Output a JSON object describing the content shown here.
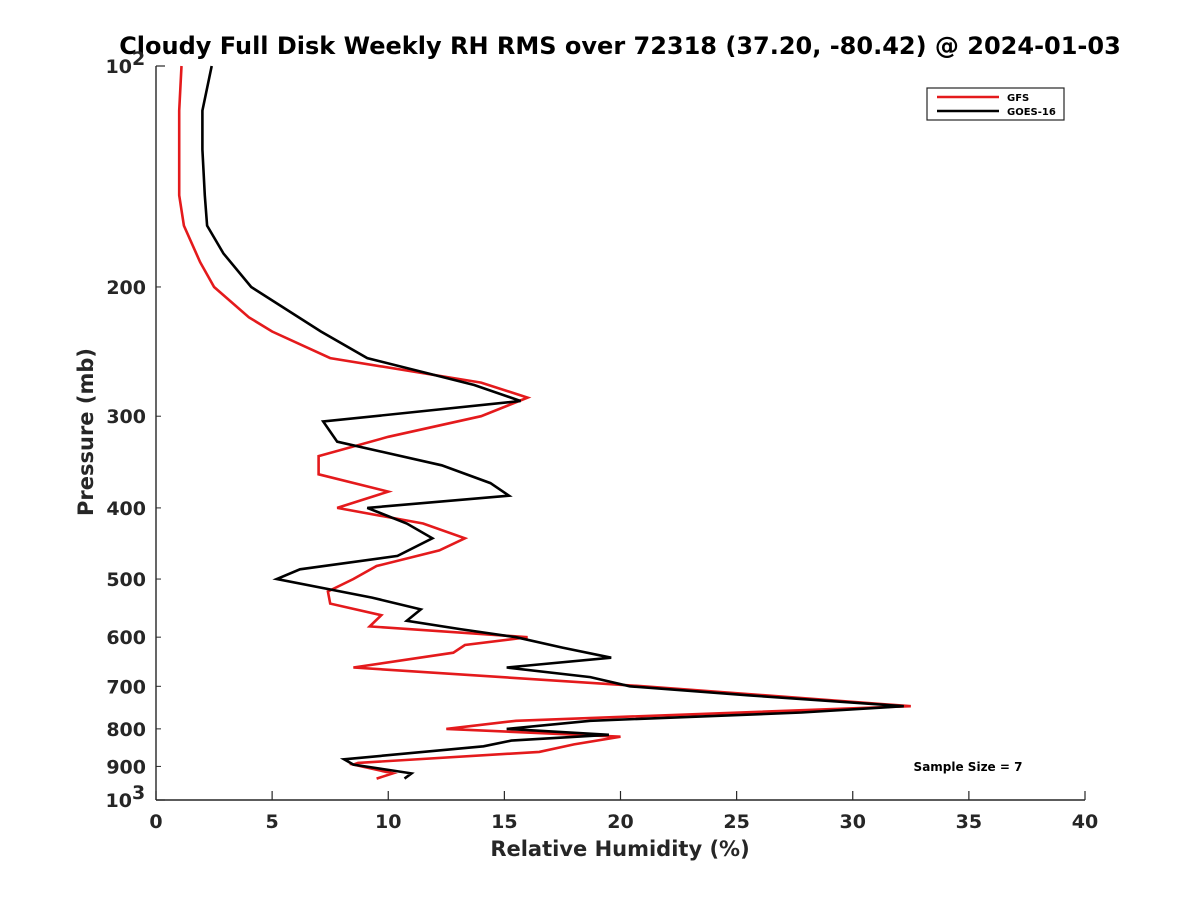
{
  "chart_data": {
    "type": "line",
    "title": "Cloudy Full Disk Weekly RH RMS over 72318 (37.20, -80.42) @ 2024-01-03",
    "xlabel": "Relative Humidity (%)",
    "ylabel": "Pressure (mb)",
    "xlim": [
      0,
      40
    ],
    "ylim": [
      100,
      1000
    ],
    "yscale": "log",
    "y_reversed": true,
    "x_ticks": [
      0,
      5,
      10,
      15,
      20,
      25,
      30,
      35,
      40
    ],
    "x_tick_labels": [
      "0",
      "5",
      "10",
      "15",
      "20",
      "25",
      "30",
      "35",
      "40"
    ],
    "y_ticks": [
      200,
      300,
      400,
      500,
      600,
      700,
      800,
      900
    ],
    "y_tick_labels": [
      "200",
      "300",
      "400",
      "500",
      "600",
      "700",
      "800",
      "900"
    ],
    "y_major_ticks": [
      {
        "value": 100,
        "base": "10",
        "exp": "2"
      },
      {
        "value": 1000,
        "base": "10",
        "exp": "3"
      }
    ],
    "grid": false,
    "legend_position": "top-right",
    "annotation": "Sample Size = 7",
    "series": [
      {
        "name": "GFS",
        "color": "#e41a1c",
        "points": [
          [
            1.1,
            100
          ],
          [
            1.0,
            115
          ],
          [
            1.0,
            130
          ],
          [
            1.0,
            150
          ],
          [
            1.2,
            165
          ],
          [
            1.9,
            185
          ],
          [
            2.5,
            200
          ],
          [
            4.0,
            220
          ],
          [
            5.0,
            230
          ],
          [
            7.5,
            250
          ],
          [
            14.0,
            270
          ],
          [
            16.0,
            283
          ],
          [
            14.0,
            300
          ],
          [
            10.0,
            320
          ],
          [
            7.0,
            340
          ],
          [
            7.0,
            360
          ],
          [
            10.0,
            380
          ],
          [
            7.8,
            400
          ],
          [
            11.5,
            420
          ],
          [
            13.3,
            440
          ],
          [
            12.2,
            457
          ],
          [
            9.5,
            480
          ],
          [
            8.5,
            500
          ],
          [
            7.4,
            520
          ],
          [
            7.5,
            540
          ],
          [
            9.7,
            560
          ],
          [
            9.2,
            580
          ],
          [
            16.0,
            600
          ],
          [
            13.3,
            615
          ],
          [
            12.8,
            630
          ],
          [
            8.5,
            660
          ],
          [
            21.0,
            700
          ],
          [
            32.5,
            745
          ],
          [
            15.5,
            780
          ],
          [
            12.5,
            800
          ],
          [
            20.0,
            820
          ],
          [
            18.0,
            840
          ],
          [
            16.5,
            860
          ],
          [
            8.7,
            890
          ],
          [
            8.5,
            895
          ],
          [
            10.2,
            920
          ],
          [
            9.5,
            935
          ]
        ]
      },
      {
        "name": "GOES-16",
        "color": "#000000",
        "points": [
          [
            2.4,
            100
          ],
          [
            2.0,
            115
          ],
          [
            2.0,
            130
          ],
          [
            2.1,
            150
          ],
          [
            2.2,
            165
          ],
          [
            2.9,
            180
          ],
          [
            4.1,
            200
          ],
          [
            7.1,
            230
          ],
          [
            9.1,
            250
          ],
          [
            13.7,
            272
          ],
          [
            15.7,
            286
          ],
          [
            7.2,
            305
          ],
          [
            7.8,
            325
          ],
          [
            12.3,
            350
          ],
          [
            14.4,
            370
          ],
          [
            15.2,
            385
          ],
          [
            9.1,
            400
          ],
          [
            10.8,
            420
          ],
          [
            11.9,
            440
          ],
          [
            10.4,
            465
          ],
          [
            6.2,
            485
          ],
          [
            5.2,
            500
          ],
          [
            9.3,
            530
          ],
          [
            11.4,
            550
          ],
          [
            10.8,
            570
          ],
          [
            13.1,
            585
          ],
          [
            15.5,
            600
          ],
          [
            17.5,
            620
          ],
          [
            19.6,
            640
          ],
          [
            15.1,
            660
          ],
          [
            18.7,
            680
          ],
          [
            20.4,
            700
          ],
          [
            25.5,
            720
          ],
          [
            32.2,
            745
          ],
          [
            27.8,
            760
          ],
          [
            18.7,
            780
          ],
          [
            15.1,
            800
          ],
          [
            19.5,
            815
          ],
          [
            15.3,
            830
          ],
          [
            14.1,
            845
          ],
          [
            8.1,
            880
          ],
          [
            8.5,
            895
          ],
          [
            10.0,
            910
          ],
          [
            11.0,
            920
          ],
          [
            10.7,
            935
          ]
        ]
      }
    ]
  }
}
